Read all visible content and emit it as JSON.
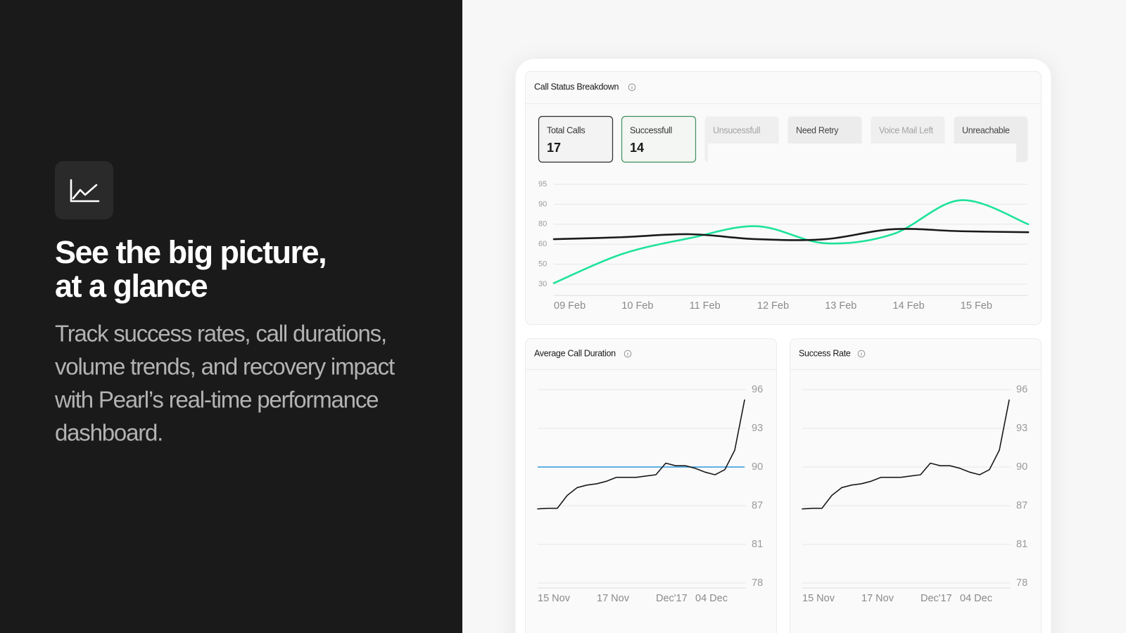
{
  "hero": {
    "title": [
      "See the big picture,",
      "at a glance"
    ],
    "body": [
      "Track success rates, call durations,",
      "volume trends, and recovery impact",
      "with Pearl’s real-time performance",
      "dashboard."
    ]
  },
  "tabs": [
    {
      "label": "Total Calls",
      "value": "17"
    },
    {
      "label": "Successfull",
      "value": "14"
    },
    {
      "label": "Unsucessfull"
    },
    {
      "label": "Need Retry"
    },
    {
      "label": "Voice Mail Left"
    },
    {
      "label": "Unreachable"
    }
  ],
  "chart_data": [
    {
      "type": "line",
      "title": "Call Status Breakdown",
      "smooth": true,
      "categories": [
        "09 Feb",
        "10 Feb",
        "11 Feb",
        "12 Feb",
        "13 Feb",
        "14 Feb",
        "15 Feb",
        null
      ],
      "series": [
        {
          "color": "#1ee39b",
          "values": [
            31,
            55,
            66,
            78,
            61,
            70,
            91,
            80
          ]
        },
        {
          "color": "#1a1a1a",
          "values": [
            65,
            67,
            70,
            65,
            65,
            75,
            73,
            72
          ]
        }
      ],
      "ylim": [
        30,
        95
      ],
      "yticks": [
        95,
        90,
        80,
        60,
        50,
        30
      ],
      "grid": true
    },
    {
      "type": "line",
      "title": "Average Call Duration",
      "categories": [
        "15 Nov",
        null,
        null,
        null,
        null,
        null,
        "17 Nov",
        null,
        null,
        null,
        null,
        null,
        "Dec'17",
        null,
        null,
        null,
        "04 Dec",
        null,
        null,
        null,
        null,
        null
      ],
      "series": [
        {
          "color": "#1a1a1a",
          "values": [
            86.5,
            86.6,
            86.6,
            87.8,
            88.4,
            88.6,
            88.7,
            88.9,
            89.2,
            89.2,
            89.2,
            89.3,
            89.4,
            90.3,
            90.1,
            90.1,
            89.9,
            89.6,
            89.4,
            89.8,
            91.3,
            95.2
          ]
        }
      ],
      "reference": {
        "value": 90,
        "color": "#4aa8e0"
      },
      "ylim": [
        78,
        96
      ],
      "yticks": [
        96,
        93,
        90,
        87,
        81,
        78
      ],
      "grid": true
    },
    {
      "type": "line",
      "title": "Success Rate",
      "categories": [
        "15 Nov",
        null,
        null,
        null,
        null,
        null,
        "17 Nov",
        null,
        null,
        null,
        null,
        null,
        "Dec'17",
        null,
        null,
        null,
        "04 Dec",
        null,
        null,
        null,
        null,
        null
      ],
      "series": [
        {
          "color": "#1a1a1a",
          "values": [
            86.5,
            86.6,
            86.6,
            87.8,
            88.4,
            88.6,
            88.7,
            88.9,
            89.2,
            89.2,
            89.2,
            89.3,
            89.4,
            90.3,
            90.1,
            90.1,
            89.9,
            89.6,
            89.4,
            89.8,
            91.3,
            95.2
          ]
        }
      ],
      "ylim": [
        78,
        96
      ],
      "yticks": [
        96,
        93,
        90,
        87,
        81,
        78
      ],
      "grid": true
    }
  ]
}
